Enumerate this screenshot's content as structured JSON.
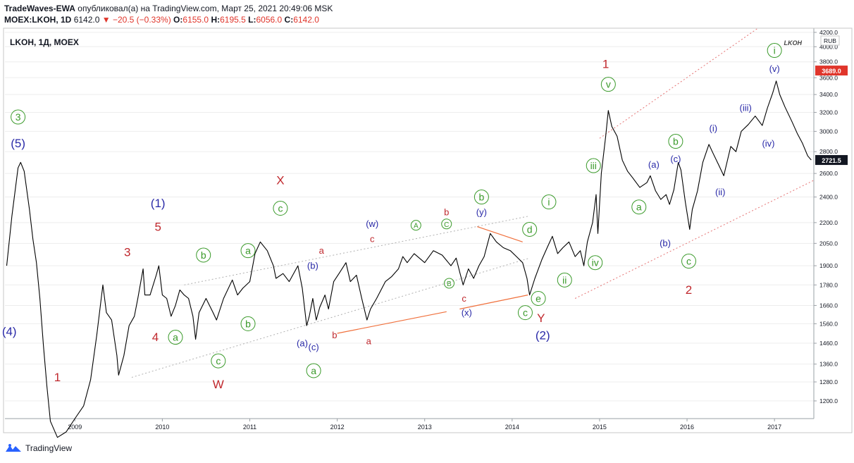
{
  "header": {
    "publisher": "TradeWaves-EWA",
    "published_text": "опубликовал(а) на TradingView.com, Март 25, 2021 20:49:06 MSK",
    "symbol": "MOEX:LKOH, 1D",
    "last": "6142.0",
    "change": "−20.5 (−0.33%)",
    "o_label": "O:",
    "o": "6155.0",
    "h_label": "H:",
    "h": "6195.5",
    "l_label": "L:",
    "l": "6056.0",
    "c_label": "C:",
    "c": "6142.0"
  },
  "footer": {
    "brand": "TradingView"
  },
  "colors": {
    "red": "#c0282d",
    "blue": "#2a2aa8",
    "green": "#3a9a2a",
    "orange": "#f0703c",
    "price": "#000000",
    "grid": "#ededed"
  },
  "chart_data": {
    "type": "line",
    "title": "LKOH, 1Д, MOEX",
    "watermark": "LKOH",
    "currency": "RUB",
    "ylim": [
      1130,
      4260
    ],
    "xlim": [
      2008.2,
      2017.45
    ],
    "x_ticks": [
      "2009",
      "2010",
      "2011",
      "2012",
      "2013",
      "2014",
      "2015",
      "2016",
      "2017"
    ],
    "y_ticks": [
      1200,
      1280,
      1360,
      1460,
      1560,
      1660,
      1780,
      1900,
      2050,
      2200,
      2400,
      2600,
      2800,
      3000,
      3200,
      3400,
      3600,
      3800,
      4000,
      4200
    ],
    "last_price_label": "3689.0",
    "current_price_label": "2721.5",
    "series": [
      {
        "values": [
          [
            2008.22,
            1900
          ],
          [
            2008.28,
            2250
          ],
          [
            2008.35,
            2650
          ],
          [
            2008.38,
            2700
          ],
          [
            2008.42,
            2620
          ],
          [
            2008.48,
            2300
          ],
          [
            2008.52,
            2080
          ],
          [
            2008.56,
            1920
          ],
          [
            2008.6,
            1700
          ],
          [
            2008.64,
            1450
          ],
          [
            2008.68,
            1260
          ],
          [
            2008.72,
            1120
          ],
          [
            2008.8,
            1060
          ],
          [
            2008.9,
            1080
          ],
          [
            2009.0,
            1130
          ],
          [
            2009.1,
            1180
          ],
          [
            2009.18,
            1290
          ],
          [
            2009.25,
            1500
          ],
          [
            2009.32,
            1780
          ],
          [
            2009.36,
            1620
          ],
          [
            2009.42,
            1580
          ],
          [
            2009.48,
            1400
          ],
          [
            2009.5,
            1310
          ],
          [
            2009.56,
            1400
          ],
          [
            2009.62,
            1550
          ],
          [
            2009.68,
            1600
          ],
          [
            2009.72,
            1700
          ],
          [
            2009.78,
            1880
          ],
          [
            2009.8,
            1720
          ],
          [
            2009.86,
            1720
          ],
          [
            2009.93,
            1840
          ],
          [
            2009.96,
            1900
          ],
          [
            2010.0,
            1720
          ],
          [
            2010.05,
            1700
          ],
          [
            2010.1,
            1600
          ],
          [
            2010.15,
            1660
          ],
          [
            2010.2,
            1750
          ],
          [
            2010.25,
            1720
          ],
          [
            2010.3,
            1700
          ],
          [
            2010.35,
            1600
          ],
          [
            2010.38,
            1480
          ],
          [
            2010.42,
            1620
          ],
          [
            2010.5,
            1700
          ],
          [
            2010.58,
            1620
          ],
          [
            2010.62,
            1580
          ],
          [
            2010.7,
            1700
          ],
          [
            2010.8,
            1810
          ],
          [
            2010.86,
            1720
          ],
          [
            2010.92,
            1760
          ],
          [
            2011.0,
            1800
          ],
          [
            2011.06,
            1980
          ],
          [
            2011.12,
            2060
          ],
          [
            2011.2,
            2000
          ],
          [
            2011.27,
            1900
          ],
          [
            2011.3,
            1820
          ],
          [
            2011.38,
            1850
          ],
          [
            2011.45,
            1800
          ],
          [
            2011.55,
            1900
          ],
          [
            2011.6,
            1760
          ],
          [
            2011.65,
            1550
          ],
          [
            2011.68,
            1600
          ],
          [
            2011.72,
            1700
          ],
          [
            2011.76,
            1580
          ],
          [
            2011.8,
            1650
          ],
          [
            2011.86,
            1720
          ],
          [
            2011.9,
            1640
          ],
          [
            2011.96,
            1800
          ],
          [
            2012.02,
            1850
          ],
          [
            2012.1,
            1920
          ],
          [
            2012.15,
            1800
          ],
          [
            2012.22,
            1840
          ],
          [
            2012.28,
            1700
          ],
          [
            2012.34,
            1580
          ],
          [
            2012.38,
            1640
          ],
          [
            2012.45,
            1700
          ],
          [
            2012.55,
            1800
          ],
          [
            2012.62,
            1830
          ],
          [
            2012.7,
            1880
          ],
          [
            2012.75,
            1960
          ],
          [
            2012.8,
            1920
          ],
          [
            2012.88,
            1980
          ],
          [
            2013.0,
            1920
          ],
          [
            2013.1,
            2000
          ],
          [
            2013.2,
            1970
          ],
          [
            2013.3,
            1900
          ],
          [
            2013.36,
            1950
          ],
          [
            2013.4,
            1860
          ],
          [
            2013.44,
            1780
          ],
          [
            2013.5,
            1880
          ],
          [
            2013.56,
            1820
          ],
          [
            2013.62,
            1900
          ],
          [
            2013.68,
            1960
          ],
          [
            2013.75,
            2120
          ],
          [
            2013.82,
            2060
          ],
          [
            2013.9,
            2020
          ],
          [
            2013.98,
            2000
          ],
          [
            2014.05,
            1960
          ],
          [
            2014.12,
            1920
          ],
          [
            2014.17,
            1820
          ],
          [
            2014.2,
            1720
          ],
          [
            2014.26,
            1820
          ],
          [
            2014.34,
            1940
          ],
          [
            2014.4,
            2020
          ],
          [
            2014.46,
            2100
          ],
          [
            2014.52,
            1980
          ],
          [
            2014.58,
            2020
          ],
          [
            2014.65,
            2060
          ],
          [
            2014.72,
            1960
          ],
          [
            2014.78,
            2000
          ],
          [
            2014.82,
            1900
          ],
          [
            2014.86,
            2060
          ],
          [
            2014.92,
            2200
          ],
          [
            2014.96,
            2420
          ],
          [
            2014.98,
            2120
          ],
          [
            2015.02,
            2600
          ],
          [
            2015.07,
            2950
          ],
          [
            2015.1,
            3220
          ],
          [
            2015.14,
            3050
          ],
          [
            2015.2,
            2950
          ],
          [
            2015.26,
            2720
          ],
          [
            2015.32,
            2620
          ],
          [
            2015.38,
            2560
          ],
          [
            2015.46,
            2480
          ],
          [
            2015.54,
            2520
          ],
          [
            2015.58,
            2580
          ],
          [
            2015.64,
            2450
          ],
          [
            2015.7,
            2380
          ],
          [
            2015.76,
            2420
          ],
          [
            2015.8,
            2340
          ],
          [
            2015.85,
            2460
          ],
          [
            2015.9,
            2700
          ],
          [
            2015.93,
            2630
          ],
          [
            2015.98,
            2360
          ],
          [
            2016.03,
            2150
          ],
          [
            2016.06,
            2300
          ],
          [
            2016.12,
            2450
          ],
          [
            2016.18,
            2700
          ],
          [
            2016.25,
            2870
          ],
          [
            2016.3,
            2780
          ],
          [
            2016.36,
            2680
          ],
          [
            2016.42,
            2580
          ],
          [
            2016.5,
            2850
          ],
          [
            2016.56,
            2800
          ],
          [
            2016.62,
            3000
          ],
          [
            2016.7,
            3070
          ],
          [
            2016.78,
            3160
          ],
          [
            2016.86,
            3060
          ],
          [
            2016.92,
            3250
          ],
          [
            2016.98,
            3420
          ],
          [
            2017.02,
            3560
          ],
          [
            2017.06,
            3400
          ],
          [
            2017.12,
            3260
          ],
          [
            2017.2,
            3100
          ],
          [
            2017.26,
            2980
          ],
          [
            2017.32,
            2880
          ],
          [
            2017.38,
            2760
          ],
          [
            2017.42,
            2722
          ]
        ]
      }
    ],
    "wave_labels": [
      {
        "text": "3",
        "x": 2008.35,
        "y": 3150,
        "color": "green",
        "circled": true
      },
      {
        "text": "(5)",
        "x": 2008.35,
        "y": 2880,
        "color": "blue"
      },
      {
        "text": "(4)",
        "x": 2008.25,
        "y": 1520,
        "color": "blue"
      },
      {
        "text": "1",
        "x": 2008.8,
        "y": 1300,
        "color": "red"
      },
      {
        "text": "3",
        "x": 2009.6,
        "y": 1990,
        "color": "red"
      },
      {
        "text": "(1)",
        "x": 2009.95,
        "y": 2350,
        "color": "blue"
      },
      {
        "text": "5",
        "x": 2009.95,
        "y": 2170,
        "color": "red"
      },
      {
        "text": "4",
        "x": 2009.92,
        "y": 1490,
        "color": "red"
      },
      {
        "text": "a",
        "x": 2010.15,
        "y": 1490,
        "color": "green",
        "circled": true
      },
      {
        "text": "b",
        "x": 2010.47,
        "y": 1970,
        "color": "green",
        "circled": true
      },
      {
        "text": "c",
        "x": 2010.64,
        "y": 1375,
        "color": "green",
        "circled": true
      },
      {
        "text": "W",
        "x": 2010.64,
        "y": 1270,
        "color": "red"
      },
      {
        "text": "a",
        "x": 2010.98,
        "y": 2000,
        "color": "green",
        "circled": true
      },
      {
        "text": "b",
        "x": 2010.98,
        "y": 1560,
        "color": "green",
        "circled": true
      },
      {
        "text": "X",
        "x": 2011.35,
        "y": 2540,
        "color": "red"
      },
      {
        "text": "c",
        "x": 2011.35,
        "y": 2310,
        "color": "green",
        "circled": true
      },
      {
        "text": "a",
        "x": 2011.82,
        "y": 2000,
        "color": "red",
        "small": true
      },
      {
        "text": "(b)",
        "x": 2011.72,
        "y": 1900,
        "color": "blue",
        "small": true
      },
      {
        "text": "(a)",
        "x": 2011.6,
        "y": 1460,
        "color": "blue",
        "small": true
      },
      {
        "text": "(c)",
        "x": 2011.73,
        "y": 1440,
        "color": "blue",
        "small": true
      },
      {
        "text": "a",
        "x": 2011.73,
        "y": 1330,
        "color": "green",
        "circled": true
      },
      {
        "text": "b",
        "x": 2011.97,
        "y": 1500,
        "color": "red",
        "small": true
      },
      {
        "text": "a",
        "x": 2012.36,
        "y": 1470,
        "color": "red",
        "small": true
      },
      {
        "text": "(w)",
        "x": 2012.4,
        "y": 2190,
        "color": "blue",
        "small": true
      },
      {
        "text": "c",
        "x": 2012.4,
        "y": 2080,
        "color": "red",
        "small": true
      },
      {
        "text": "A",
        "x": 2012.9,
        "y": 2180,
        "color": "green",
        "circled": true,
        "small": true
      },
      {
        "text": "C",
        "x": 2013.25,
        "y": 2190,
        "color": "green",
        "circled": true,
        "small": true
      },
      {
        "text": "b",
        "x": 2013.25,
        "y": 2280,
        "color": "red",
        "small": true
      },
      {
        "text": "B",
        "x": 2013.28,
        "y": 1790,
        "color": "green",
        "circled": true,
        "small": true
      },
      {
        "text": "c",
        "x": 2013.45,
        "y": 1700,
        "color": "red",
        "small": true
      },
      {
        "text": "b",
        "x": 2013.65,
        "y": 2400,
        "color": "green",
        "circled": true
      },
      {
        "text": "(y)",
        "x": 2013.65,
        "y": 2280,
        "color": "blue",
        "small": true
      },
      {
        "text": "(x)",
        "x": 2013.48,
        "y": 1620,
        "color": "blue",
        "small": true
      },
      {
        "text": "(2)",
        "x": 2014.35,
        "y": 1500,
        "color": "blue"
      },
      {
        "text": "d",
        "x": 2014.2,
        "y": 2150,
        "color": "green",
        "circled": true
      },
      {
        "text": "e",
        "x": 2014.3,
        "y": 1700,
        "color": "green",
        "circled": true
      },
      {
        "text": "c",
        "x": 2014.15,
        "y": 1620,
        "color": "green",
        "circled": true
      },
      {
        "text": "Y",
        "x": 2014.33,
        "y": 1590,
        "color": "red"
      },
      {
        "text": "i",
        "x": 2014.42,
        "y": 2360,
        "color": "green",
        "circled": true
      },
      {
        "text": "ii",
        "x": 2014.6,
        "y": 1810,
        "color": "green",
        "circled": true
      },
      {
        "text": "iii",
        "x": 2014.93,
        "y": 2670,
        "color": "green",
        "circled": true
      },
      {
        "text": "iv",
        "x": 2014.95,
        "y": 1920,
        "color": "green",
        "circled": true
      },
      {
        "text": "1",
        "x": 2015.07,
        "y": 3770,
        "color": "red"
      },
      {
        "text": "v",
        "x": 2015.1,
        "y": 3520,
        "color": "green",
        "circled": true
      },
      {
        "text": "a",
        "x": 2015.45,
        "y": 2320,
        "color": "green",
        "circled": true
      },
      {
        "text": "(a)",
        "x": 2015.62,
        "y": 2680,
        "color": "blue",
        "small": true
      },
      {
        "text": "(b)",
        "x": 2015.75,
        "y": 2050,
        "color": "blue",
        "small": true
      },
      {
        "text": "b",
        "x": 2015.87,
        "y": 2900,
        "color": "green",
        "circled": true
      },
      {
        "text": "(c)",
        "x": 2015.87,
        "y": 2730,
        "color": "blue",
        "small": true
      },
      {
        "text": "c",
        "x": 2016.02,
        "y": 1930,
        "color": "green",
        "circled": true
      },
      {
        "text": "2",
        "x": 2016.02,
        "y": 1750,
        "color": "red"
      },
      {
        "text": "(i)",
        "x": 2016.3,
        "y": 3030,
        "color": "blue",
        "small": true
      },
      {
        "text": "(ii)",
        "x": 2016.38,
        "y": 2440,
        "color": "blue",
        "small": true
      },
      {
        "text": "(iii)",
        "x": 2016.67,
        "y": 3250,
        "color": "blue",
        "small": true
      },
      {
        "text": "(iv)",
        "x": 2016.93,
        "y": 2880,
        "color": "blue",
        "small": true
      },
      {
        "text": "(v)",
        "x": 2017.0,
        "y": 3710,
        "color": "blue",
        "small": true
      },
      {
        "text": "i",
        "x": 2017.0,
        "y": 3950,
        "color": "green",
        "circled": true
      }
    ]
  }
}
